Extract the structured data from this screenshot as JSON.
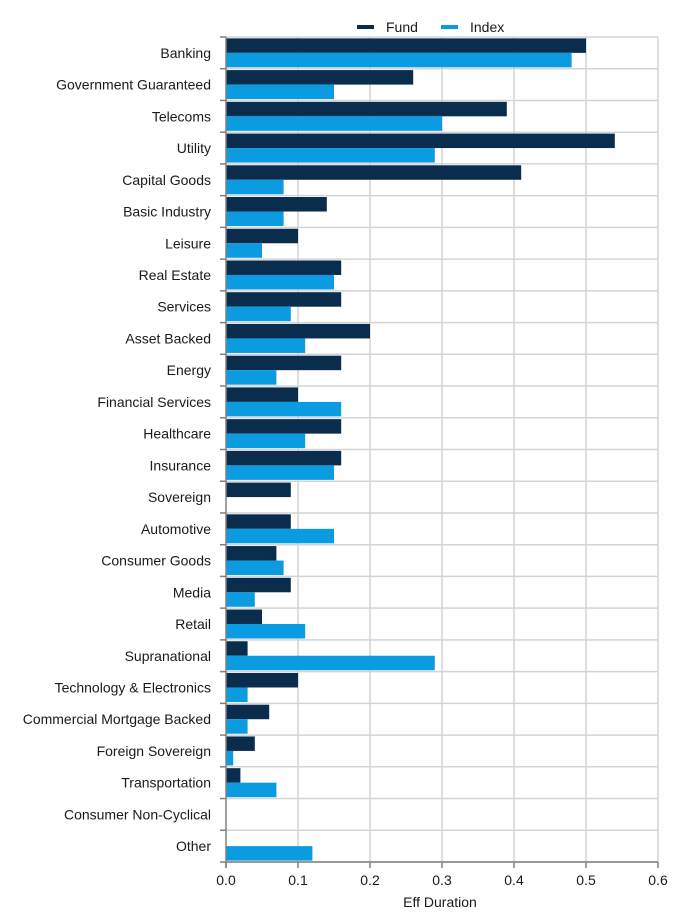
{
  "chart_data": {
    "type": "bar",
    "orientation": "horizontal",
    "title": "",
    "xlabel": "Eff Duration",
    "ylabel": "",
    "xlim": [
      0,
      0.6
    ],
    "x_ticks": [
      "0.0",
      "0.1",
      "0.2",
      "0.3",
      "0.4",
      "0.5",
      "0.6"
    ],
    "grid": true,
    "legend_position": "top",
    "categories": [
      "Banking",
      "Government Guaranteed",
      "Telecoms",
      "Utility",
      "Capital Goods",
      "Basic Industry",
      "Leisure",
      "Real Estate",
      "Services",
      "Asset Backed",
      "Energy",
      "Financial Services",
      "Healthcare",
      "Insurance",
      "Sovereign",
      "Automotive",
      "Consumer Goods",
      "Media",
      "Retail",
      "Supranational",
      "Technology & Electronics",
      "Commercial Mortgage Backed",
      "Foreign Sovereign",
      "Transportation",
      "Consumer Non-Cyclical",
      "Other"
    ],
    "series": [
      {
        "name": "Fund",
        "color": "#0a2d4d",
        "values": [
          0.5,
          0.26,
          0.39,
          0.54,
          0.41,
          0.14,
          0.1,
          0.16,
          0.16,
          0.2,
          0.16,
          0.1,
          0.16,
          0.16,
          0.09,
          0.09,
          0.07,
          0.09,
          0.05,
          0.03,
          0.1,
          0.06,
          0.04,
          0.02,
          0.0,
          0.0
        ]
      },
      {
        "name": "Index",
        "color": "#0a9be0",
        "values": [
          0.48,
          0.15,
          0.3,
          0.29,
          0.08,
          0.08,
          0.05,
          0.15,
          0.09,
          0.11,
          0.07,
          0.16,
          0.11,
          0.15,
          0.0,
          0.15,
          0.08,
          0.04,
          0.11,
          0.29,
          0.03,
          0.03,
          0.01,
          0.07,
          0.0,
          0.12
        ]
      }
    ]
  }
}
